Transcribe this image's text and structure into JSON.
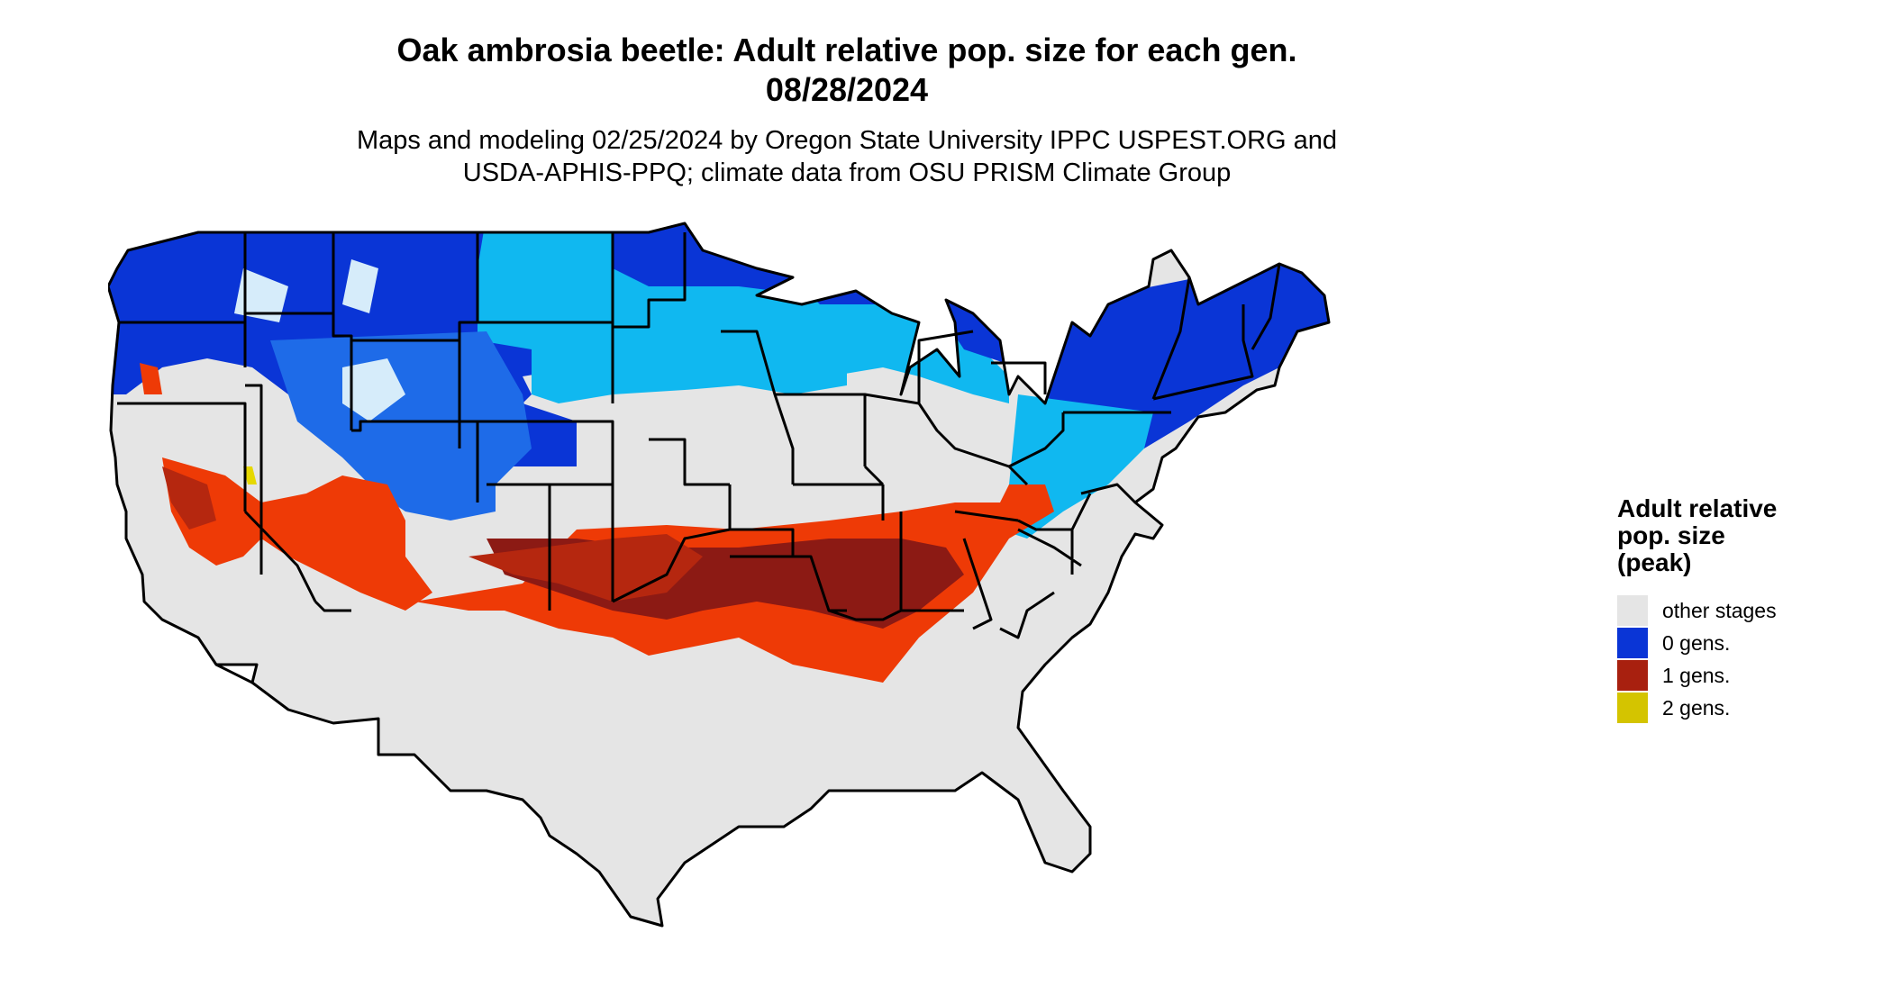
{
  "title": {
    "line1": "Oak ambrosia beetle: Adult relative pop. size for each gen.",
    "line2": "08/28/2024"
  },
  "subtitle": {
    "line1": "Maps and modeling 02/25/2024 by Oregon State University IPPC USPEST.ORG and",
    "line2": "USDA-APHIS-PPQ; climate data from OSU PRISM Climate Group"
  },
  "legend": {
    "title_lines": [
      "Adult relative",
      "pop. size",
      "(peak)"
    ],
    "items": [
      {
        "label": "other stages",
        "color": "#e5e5e5"
      },
      {
        "label": "0 gens.",
        "color": "#0a35d6"
      },
      {
        "label": "1 gens.",
        "color": "#a8200f"
      },
      {
        "label": "2 gens.",
        "color": "#d4c400"
      }
    ]
  },
  "map_colors": {
    "background_land": "#e5e5e5",
    "zero_gen_dark": "#0a35d6",
    "zero_gen_mid": "#1e6be8",
    "zero_gen_light": "#10b8f0",
    "zero_gen_pale": "#d6ecfa",
    "one_gen_dark": "#8c1a14",
    "one_gen_mid": "#b5270f",
    "one_gen_light": "#ee3a06",
    "two_gen": "#e6d800",
    "border": "#000000"
  }
}
